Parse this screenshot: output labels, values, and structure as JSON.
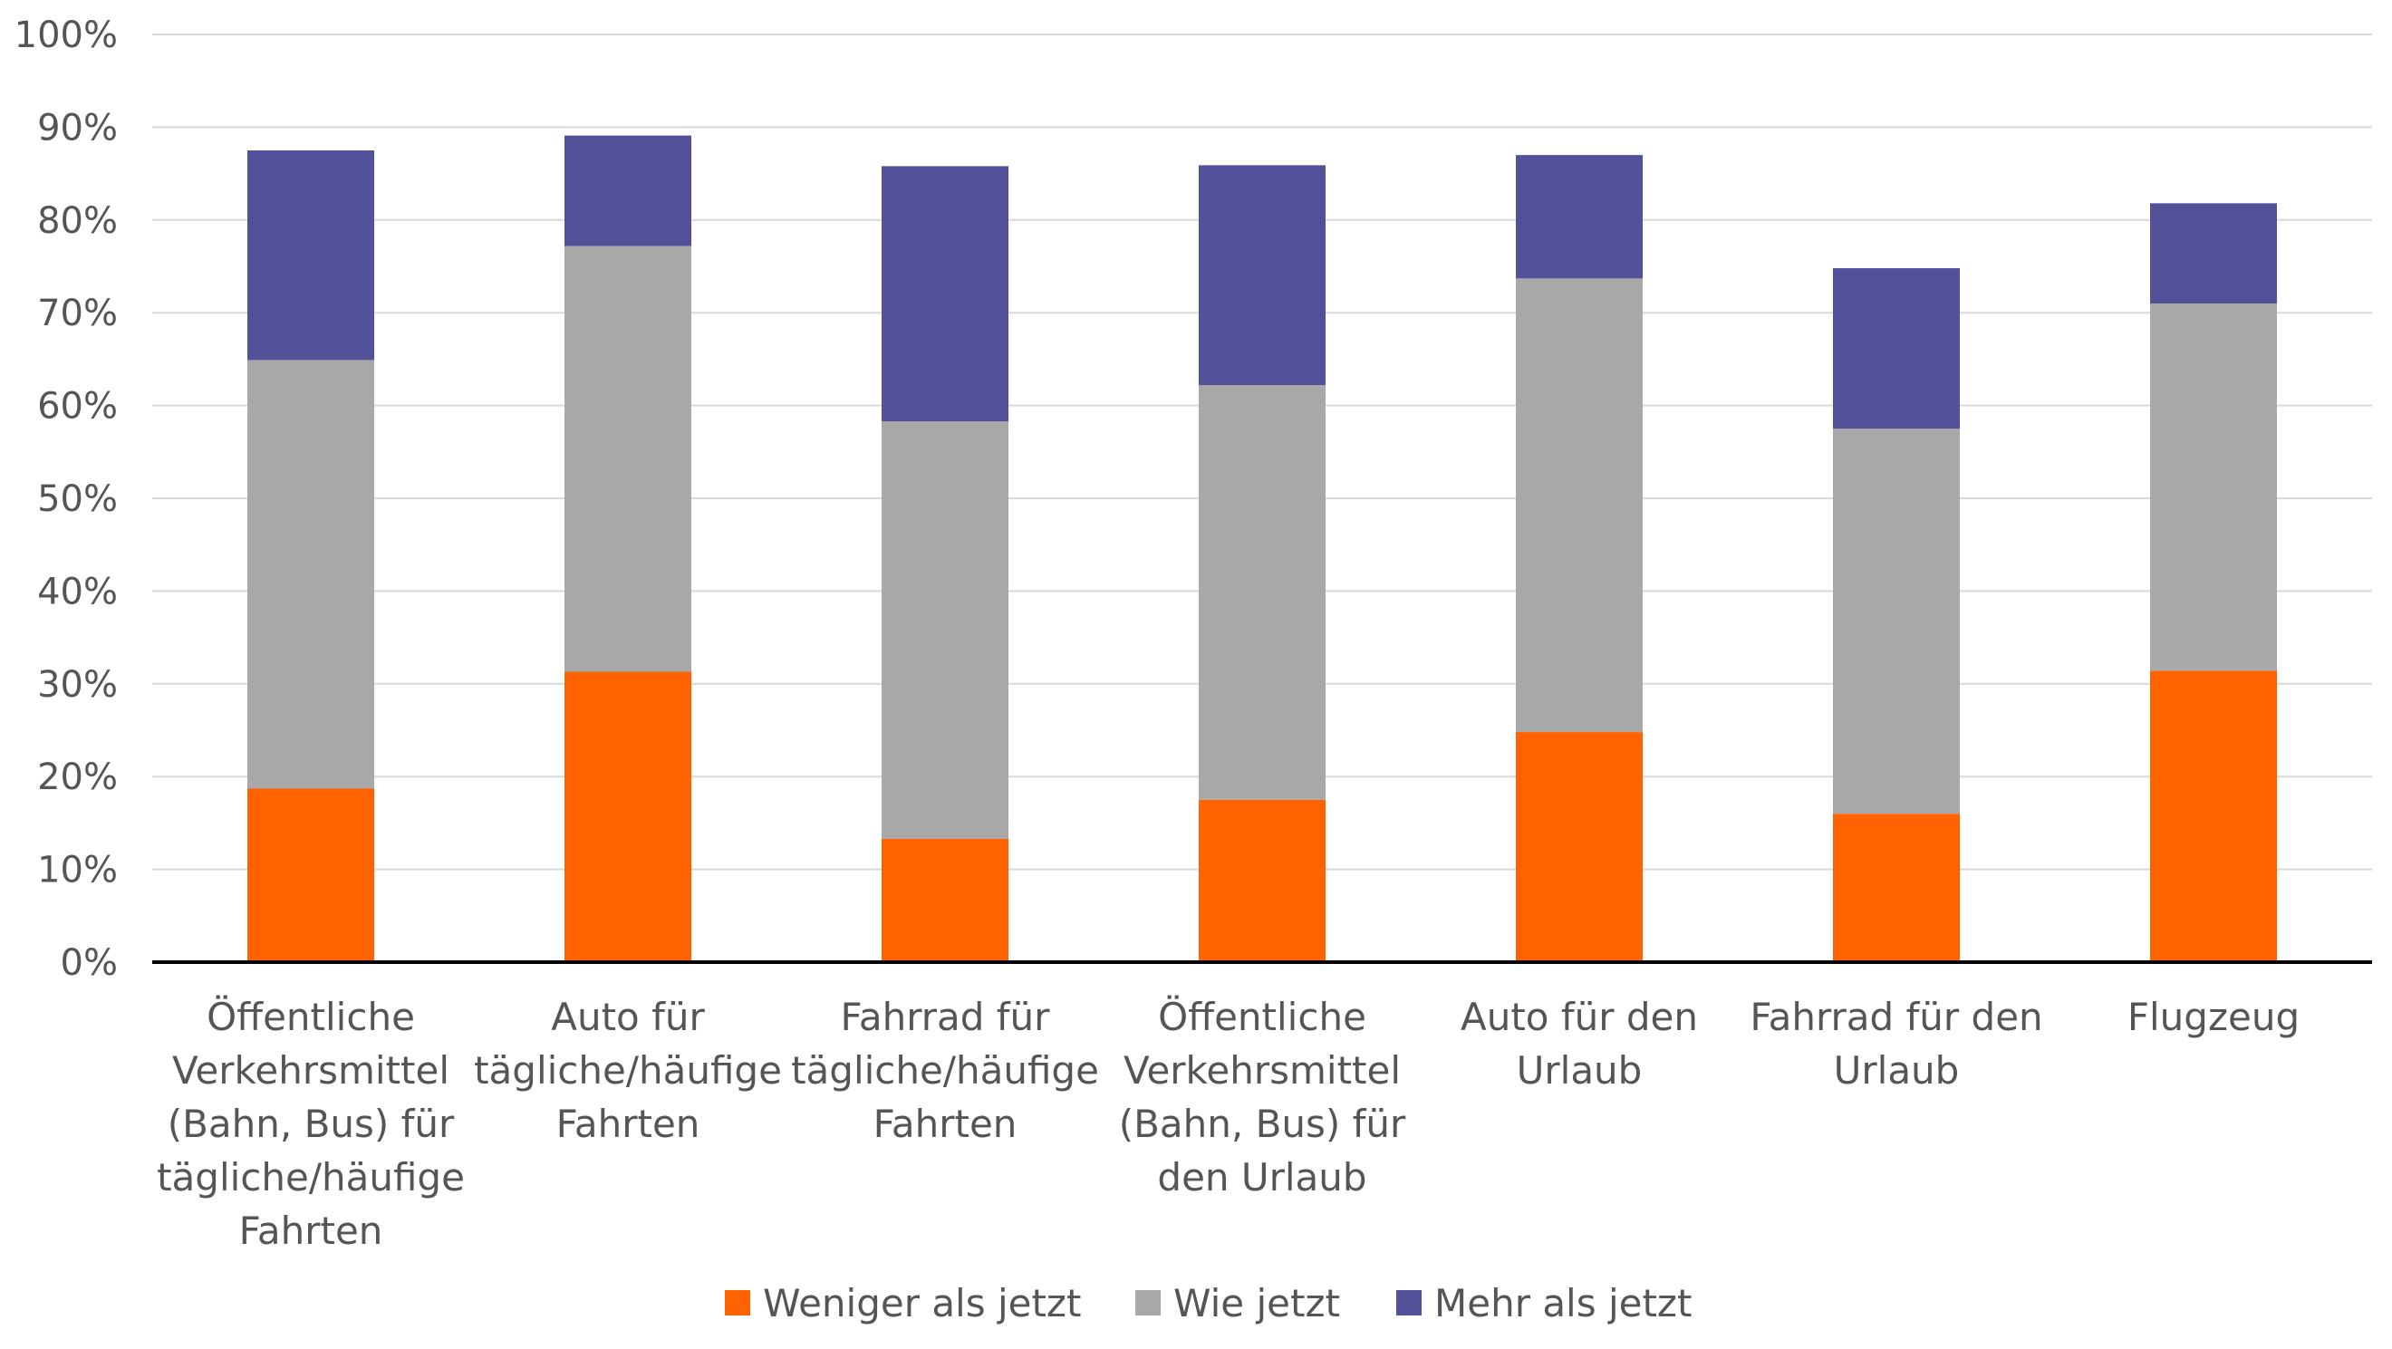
{
  "chart_data": {
    "type": "bar",
    "stacked": true,
    "categories": [
      [
        "Öffentliche",
        "Verkehrsmittel",
        "(Bahn, Bus) für",
        "tägliche/häufige",
        "Fahrten"
      ],
      [
        "Auto für",
        "tägliche/häufige",
        "Fahrten"
      ],
      [
        "Fahrrad für",
        "tägliche/häufige",
        "Fahrten"
      ],
      [
        "Öffentliche",
        "Verkehrsmittel",
        "(Bahn, Bus) für",
        "den Urlaub"
      ],
      [
        "Auto für den",
        "Urlaub"
      ],
      [
        "Fahrrad für den",
        "Urlaub"
      ],
      [
        "Flugzeug"
      ]
    ],
    "series": [
      {
        "name": "Weniger als jetzt",
        "color": "#FF6200",
        "values": [
          18.7,
          31.3,
          13.3,
          17.5,
          24.8,
          16.0,
          31.4
        ]
      },
      {
        "name": "Wie jetzt",
        "color": "#A8A8A8",
        "values": [
          46.2,
          45.9,
          45.0,
          44.7,
          48.9,
          41.5,
          39.6
        ]
      },
      {
        "name": "Mehr als jetzt",
        "color": "#525199",
        "values": [
          22.6,
          11.9,
          27.5,
          23.7,
          13.3,
          17.3,
          10.8
        ]
      }
    ],
    "ylim": [
      0,
      100
    ],
    "yticks": [
      "0%",
      "10%",
      "20%",
      "30%",
      "40%",
      "50%",
      "60%",
      "70%",
      "80%",
      "90%",
      "100%"
    ],
    "grid": true,
    "legend_position": "bottom",
    "title": "",
    "xlabel": "",
    "ylabel": ""
  },
  "style": {
    "grid_color": "#D9D9D9",
    "axis_color": "#000000"
  }
}
